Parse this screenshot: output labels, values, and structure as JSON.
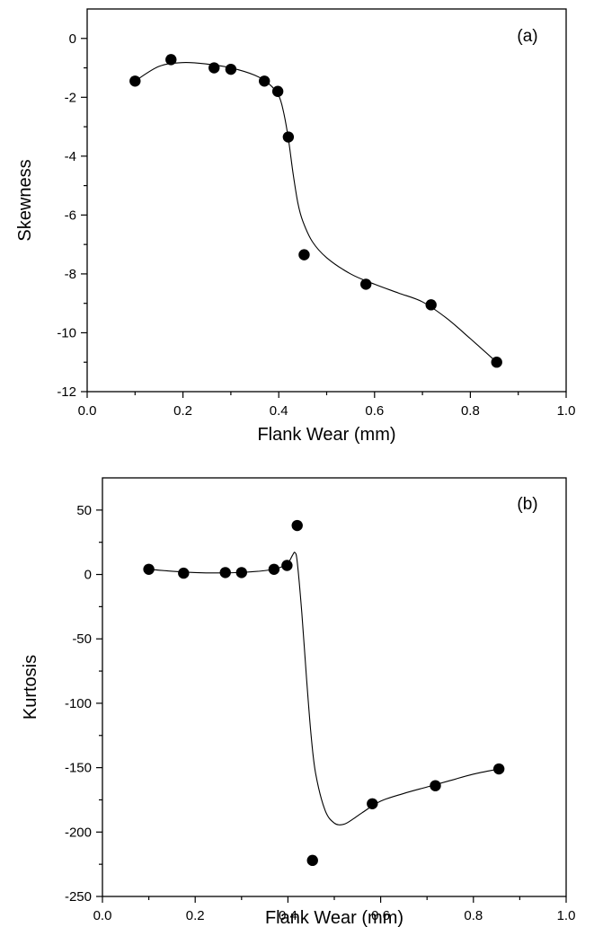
{
  "chart_data": [
    {
      "type": "scatter",
      "panel_label": "(a)",
      "xlabel": "Flank Wear (mm)",
      "ylabel": "Skewness",
      "xlim": [
        0.0,
        1.0
      ],
      "ylim": [
        -12,
        1
      ],
      "x_ticks": [
        0.0,
        0.2,
        0.4,
        0.6,
        0.8,
        1.0
      ],
      "x_tick_labels": [
        "0.0",
        "0.2",
        "0.4",
        "0.6",
        "0.8",
        "1.0"
      ],
      "y_ticks": [
        0,
        -2,
        -4,
        -6,
        -8,
        -10,
        -12
      ],
      "y_tick_labels": [
        "0",
        "-2",
        "-4",
        "-6",
        "-8",
        "-10",
        "-12"
      ],
      "points": {
        "x": [
          0.1,
          0.175,
          0.265,
          0.3,
          0.37,
          0.398,
          0.42,
          0.453,
          0.582,
          0.718,
          0.855
        ],
        "y": [
          -1.45,
          -0.72,
          -1.0,
          -1.05,
          -1.45,
          -1.8,
          -3.35,
          -7.35,
          -8.35,
          -9.05,
          -11.0
        ]
      },
      "fit_curve": {
        "x": [
          0.1,
          0.15,
          0.2,
          0.25,
          0.3,
          0.35,
          0.38,
          0.4,
          0.41,
          0.42,
          0.43,
          0.44,
          0.45,
          0.47,
          0.5,
          0.55,
          0.6,
          0.65,
          0.7,
          0.75,
          0.8,
          0.855
        ],
        "y": [
          -1.45,
          -0.95,
          -0.82,
          -0.87,
          -1.0,
          -1.25,
          -1.55,
          -1.95,
          -2.5,
          -3.4,
          -4.6,
          -5.6,
          -6.2,
          -6.9,
          -7.45,
          -8.0,
          -8.35,
          -8.65,
          -8.95,
          -9.5,
          -10.2,
          -11.0
        ]
      }
    },
    {
      "type": "scatter",
      "panel_label": "(b)",
      "xlabel": "Flank Wear (mm)",
      "ylabel": "Kurtosis",
      "xlim": [
        0.0,
        1.0
      ],
      "ylim": [
        -250,
        75
      ],
      "x_ticks": [
        0.0,
        0.2,
        0.4,
        0.6,
        0.8,
        1.0
      ],
      "x_tick_labels": [
        "0.0",
        "0.2",
        "0.4",
        "0.6",
        "0.8",
        "1.0"
      ],
      "y_ticks": [
        50,
        0,
        -50,
        -100,
        -150,
        -200,
        -250
      ],
      "y_tick_labels": [
        "50",
        "0",
        "-50",
        "-100",
        "-150",
        "-200",
        "-250"
      ],
      "points": {
        "x": [
          0.1,
          0.175,
          0.265,
          0.3,
          0.37,
          0.398,
          0.42,
          0.453,
          0.582,
          0.718,
          0.855
        ],
        "y": [
          4,
          1,
          1.5,
          1.5,
          4,
          7,
          38,
          -222,
          -178,
          -164,
          -151
        ]
      },
      "fit_curve": {
        "x": [
          0.1,
          0.15,
          0.2,
          0.25,
          0.3,
          0.35,
          0.38,
          0.4,
          0.41,
          0.415,
          0.42,
          0.43,
          0.44,
          0.45,
          0.46,
          0.48,
          0.5,
          0.52,
          0.54,
          0.56,
          0.6,
          0.65,
          0.7,
          0.75,
          0.8,
          0.855
        ],
        "y": [
          4,
          2.5,
          1.5,
          1.2,
          1.6,
          3,
          5,
          9,
          15,
          17,
          10,
          -30,
          -80,
          -125,
          -155,
          -183,
          -193,
          -194,
          -190,
          -185,
          -176,
          -170,
          -165,
          -160,
          -155,
          -151
        ]
      }
    }
  ]
}
